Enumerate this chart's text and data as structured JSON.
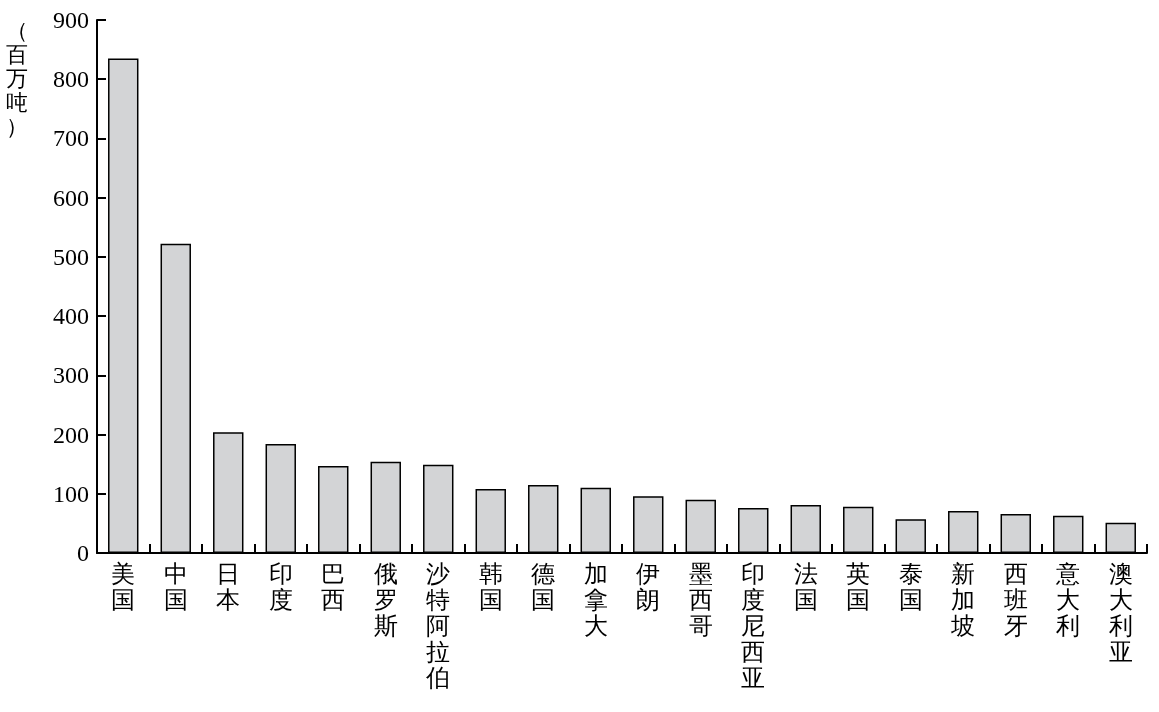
{
  "chart_data": {
    "type": "bar",
    "ylabel": "（百万吨）",
    "categories": [
      "美国",
      "中国",
      "日本",
      "印度",
      "巴西",
      "俄罗斯",
      "沙特阿拉伯",
      "韩国",
      "德国",
      "加拿大",
      "伊朗",
      "墨西哥",
      "印度尼西亚",
      "法国",
      "英国",
      "泰国",
      "新加坡",
      "西班牙",
      "意大利",
      "澳大利亚"
    ],
    "values": [
      835,
      522,
      204,
      184,
      147,
      154,
      149,
      108,
      115,
      110,
      96,
      90,
      76,
      81,
      78,
      57,
      71,
      66,
      63,
      51
    ],
    "color": "#d3d4d6",
    "ylim": [
      0,
      900
    ],
    "yticks": [
      0,
      100,
      200,
      300,
      400,
      500,
      600,
      700,
      800,
      900
    ],
    "grid": false
  }
}
